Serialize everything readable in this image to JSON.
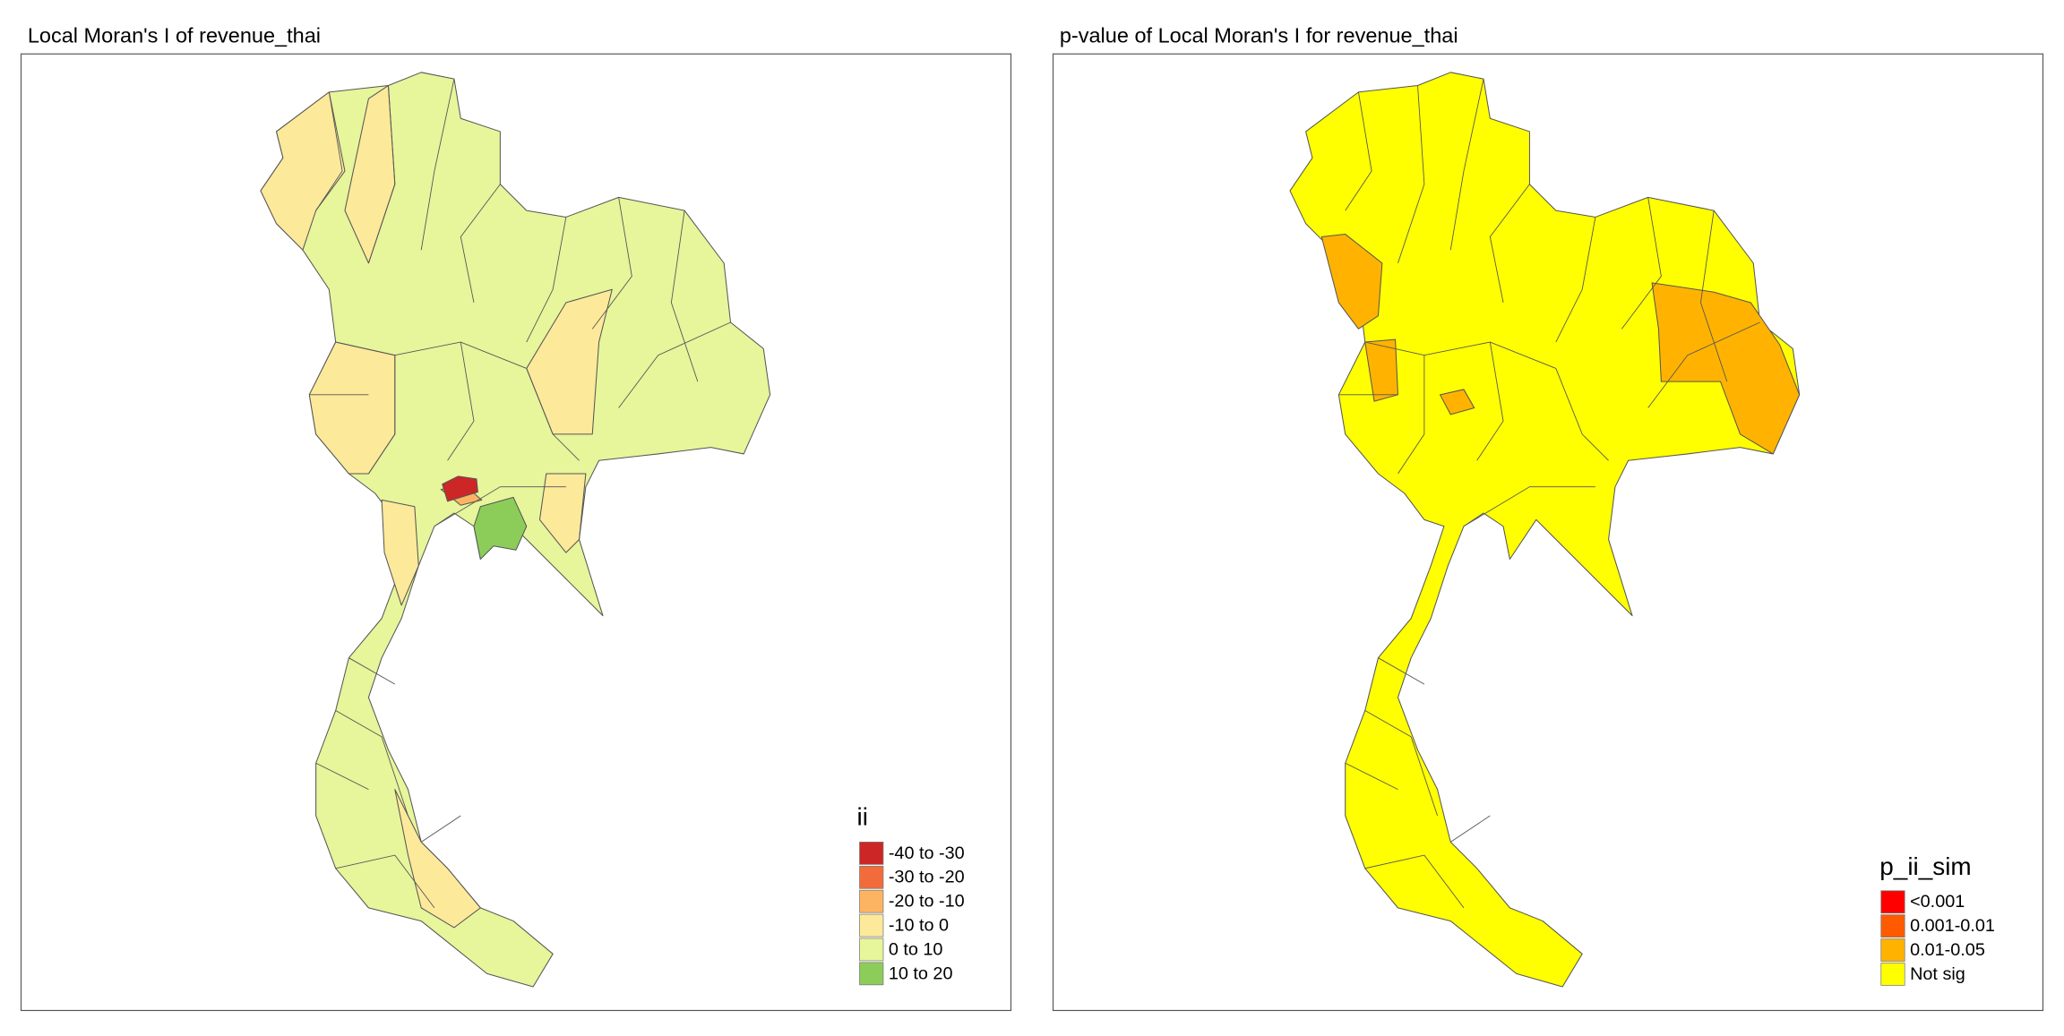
{
  "panels": [
    {
      "title": "Local Moran's I of revenue_thai",
      "legend": {
        "title": "ii",
        "items": [
          {
            "label": "-40 to -30",
            "color": "#cd2626"
          },
          {
            "label": "-30 to -20",
            "color": "#f26c3b"
          },
          {
            "label": "-20 to -10",
            "color": "#fdb462"
          },
          {
            "label": "-10 to 0",
            "color": "#fde99a"
          },
          {
            "label": "0 to 10",
            "color": "#e7f59b"
          },
          {
            "label": "10 to 20",
            "color": "#8ccd5a"
          }
        ]
      }
    },
    {
      "title": "p-value of Local Moran's I for revenue_thai",
      "legend": {
        "title": "p_ii_sim",
        "items": [
          {
            "label": "<0.001",
            "color": "#ff0000"
          },
          {
            "label": "0.001-0.01",
            "color": "#ff5a00"
          },
          {
            "label": "0.01-0.05",
            "color": "#ffb300"
          },
          {
            "label": "Not sig",
            "color": "#ffff00"
          }
        ]
      }
    }
  ]
}
